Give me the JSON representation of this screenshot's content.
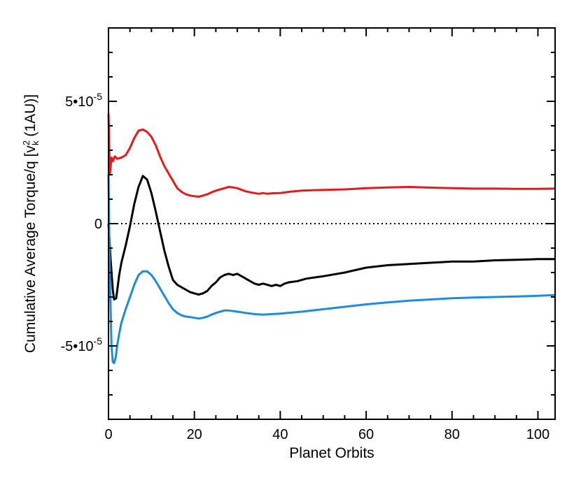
{
  "chart_data": {
    "type": "line",
    "xlabel": "Planet Orbits",
    "ylabel_parts": {
      "main": "Cumulative Average Torque/q [v",
      "sup": "2",
      "sub": "k",
      "tail": " (1AU)]"
    },
    "xlim": [
      0,
      104
    ],
    "ylim": [
      -8e-05,
      8e-05
    ],
    "x_ticks": [
      {
        "value": 0,
        "label": "0"
      },
      {
        "value": 20,
        "label": "20"
      },
      {
        "value": 40,
        "label": "40"
      },
      {
        "value": 60,
        "label": "60"
      },
      {
        "value": 80,
        "label": "80"
      },
      {
        "value": 100,
        "label": "100"
      }
    ],
    "y_ticks": [
      {
        "value": 5e-05,
        "mant": "5•10",
        "exp": "-5"
      },
      {
        "value": 0,
        "mant": "0",
        "exp": ""
      },
      {
        "value": -5e-05,
        "mant": "-5•10",
        "exp": "-5"
      }
    ],
    "zero_line": {
      "y": 0,
      "style": "dotted"
    },
    "series": [
      {
        "color": "#e8191b",
        "x": [
          0,
          0.3,
          0.7,
          1,
          1.5,
          2,
          3,
          4,
          5,
          6,
          7,
          8,
          9,
          10,
          11,
          12,
          13,
          14,
          15,
          16,
          17,
          18,
          19,
          20,
          21,
          22,
          23,
          24,
          25,
          26,
          27,
          28,
          29,
          30,
          31,
          32,
          33,
          34,
          35,
          36,
          37,
          38,
          40,
          42,
          45,
          50,
          55,
          60,
          65,
          70,
          75,
          80,
          85,
          90,
          95,
          100,
          104
        ],
        "y": [
          4.5e-05,
          2e-05,
          2.7e-05,
          2.55e-05,
          2.75e-05,
          2.65e-05,
          2.7e-05,
          2.8e-05,
          3.1e-05,
          3.5e-05,
          3.8e-05,
          3.85e-05,
          3.75e-05,
          3.55e-05,
          3.2e-05,
          2.75e-05,
          2.35e-05,
          2.05e-05,
          1.75e-05,
          1.45e-05,
          1.3e-05,
          1.2e-05,
          1.15e-05,
          1.12e-05,
          1.1e-05,
          1.15e-05,
          1.2e-05,
          1.28e-05,
          1.35e-05,
          1.4e-05,
          1.45e-05,
          1.5e-05,
          1.48e-05,
          1.45e-05,
          1.38e-05,
          1.32e-05,
          1.28e-05,
          1.25e-05,
          1.22e-05,
          1.25e-05,
          1.22e-05,
          1.24e-05,
          1.25e-05,
          1.3e-05,
          1.35e-05,
          1.38e-05,
          1.4e-05,
          1.45e-05,
          1.48e-05,
          1.5e-05,
          1.47e-05,
          1.45e-05,
          1.43e-05,
          1.43e-05,
          1.42e-05,
          1.42e-05,
          1.43e-05
        ]
      },
      {
        "color": "#000000",
        "x": [
          0,
          0.5,
          1,
          1.3,
          1.8,
          2.5,
          3,
          4,
          5,
          6,
          7,
          8,
          9,
          10,
          11,
          12,
          13,
          14,
          15,
          16,
          17,
          18,
          19,
          20,
          21,
          22,
          23,
          24,
          25,
          26,
          27,
          28,
          29,
          30,
          31,
          32,
          33,
          34,
          35,
          36,
          37,
          38,
          39,
          40,
          41,
          42,
          44,
          46,
          48,
          50,
          55,
          60,
          65,
          70,
          75,
          80,
          85,
          90,
          95,
          100,
          104
        ],
        "y": [
          0,
          -1.5e-05,
          -2.7e-05,
          -3.1e-05,
          -3.05e-05,
          -2.1e-05,
          -1.6e-05,
          -9e-06,
          -1e-06,
          8e-06,
          1.5e-05,
          1.95e-05,
          1.8e-05,
          1.25e-05,
          5e-06,
          -3e-06,
          -1.1e-05,
          -1.75e-05,
          -2.3e-05,
          -2.5e-05,
          -2.6e-05,
          -2.7e-05,
          -2.8e-05,
          -2.85e-05,
          -2.9e-05,
          -2.85e-05,
          -2.75e-05,
          -2.55e-05,
          -2.4e-05,
          -2.2e-05,
          -2.1e-05,
          -2.05e-05,
          -2.1e-05,
          -2.05e-05,
          -2.15e-05,
          -2.25e-05,
          -2.35e-05,
          -2.45e-05,
          -2.5e-05,
          -2.45e-05,
          -2.5e-05,
          -2.55e-05,
          -2.5e-05,
          -2.55e-05,
          -2.45e-05,
          -2.4e-05,
          -2.35e-05,
          -2.25e-05,
          -2.2e-05,
          -2.15e-05,
          -2e-05,
          -1.8e-05,
          -1.7e-05,
          -1.65e-05,
          -1.6e-05,
          -1.55e-05,
          -1.55e-05,
          -1.5e-05,
          -1.48e-05,
          -1.45e-05,
          -1.45e-05
        ]
      },
      {
        "color": "#1a8de0",
        "x": [
          0,
          0.3,
          0.7,
          1,
          1.3,
          1.7,
          2,
          2.5,
          3,
          4,
          5,
          6,
          7,
          8,
          9,
          10,
          11,
          12,
          13,
          14,
          15,
          16,
          17,
          18,
          19,
          20,
          21,
          22,
          23,
          24,
          25,
          26,
          27,
          28,
          30,
          32,
          34,
          36,
          38,
          40,
          45,
          50,
          55,
          60,
          65,
          70,
          75,
          80,
          85,
          90,
          95,
          100,
          104
        ],
        "y": [
          2e-05,
          -2e-05,
          -5e-05,
          -5.65e-05,
          -5.7e-05,
          -5.45e-05,
          -5e-05,
          -4.5e-05,
          -4.05e-05,
          -3.5e-05,
          -3e-05,
          -2.5e-05,
          -2.1e-05,
          -1.95e-05,
          -1.95e-05,
          -2.1e-05,
          -2.35e-05,
          -2.65e-05,
          -2.95e-05,
          -3.25e-05,
          -3.5e-05,
          -3.65e-05,
          -3.75e-05,
          -3.8e-05,
          -3.82e-05,
          -3.85e-05,
          -3.88e-05,
          -3.85e-05,
          -3.8e-05,
          -3.72e-05,
          -3.65e-05,
          -3.6e-05,
          -3.55e-05,
          -3.55e-05,
          -3.6e-05,
          -3.65e-05,
          -3.7e-05,
          -3.72e-05,
          -3.7e-05,
          -3.68e-05,
          -3.6e-05,
          -3.5e-05,
          -3.4e-05,
          -3.3e-05,
          -3.22e-05,
          -3.15e-05,
          -3.1e-05,
          -3.05e-05,
          -3.02e-05,
          -3e-05,
          -2.98e-05,
          -2.95e-05,
          -2.92e-05
        ]
      }
    ]
  }
}
